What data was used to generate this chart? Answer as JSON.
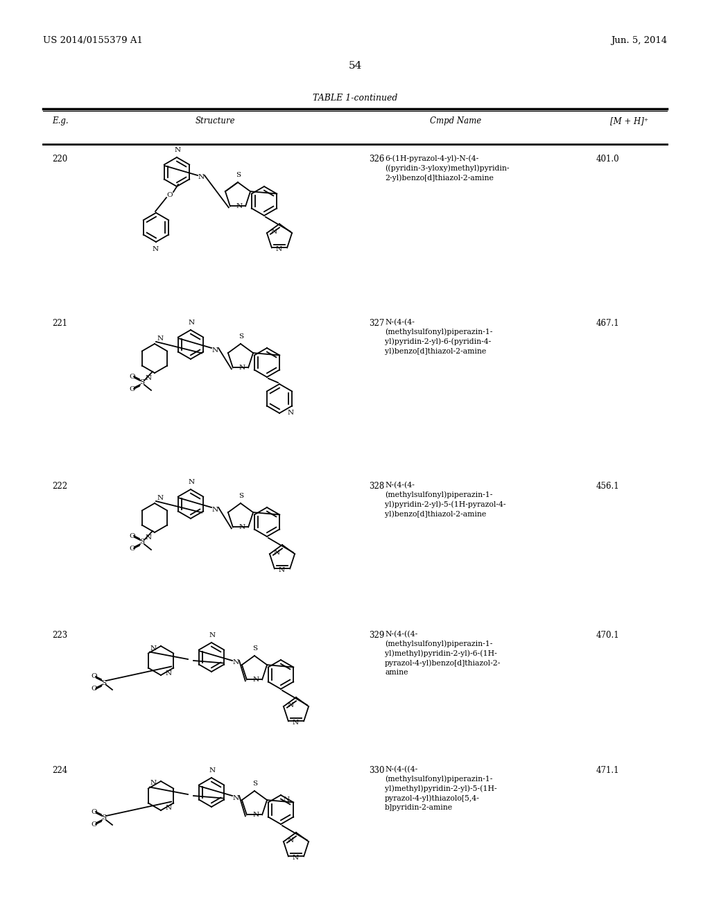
{
  "page_header_left": "US 2014/0155379 A1",
  "page_header_right": "Jun. 5, 2014",
  "page_number": "54",
  "table_title": "TABLE 1-continued",
  "col_eg": "E.g.",
  "col_structure": "Structure",
  "col_cmpd": "Cmpd Name",
  "col_mh": "[M + H]⁺",
  "rows": [
    {
      "eg": "220",
      "cmpd_num": "326",
      "cmpd_name": "6-(1H-pyrazol-4-yl)-N-(4-\n((pyridin-3-yloxy)methyl)pyridin-\n2-yl)benzo[d]thiazol-2-amine",
      "mh": "401.0"
    },
    {
      "eg": "221",
      "cmpd_num": "327",
      "cmpd_name": "N-(4-(4-\n(methylsulfonyl)piperazin-1-\nyl)pyridin-2-yl)-6-(pyridin-4-\nyl)benzo[d]thiazol-2-amine",
      "mh": "467.1"
    },
    {
      "eg": "222",
      "cmpd_num": "328",
      "cmpd_name": "N-(4-(4-\n(methylsulfonyl)piperazin-1-\nyl)pyridin-2-yl)-5-(1H-pyrazol-4-\nyl)benzo[d]thiazol-2-amine",
      "mh": "456.1"
    },
    {
      "eg": "223",
      "cmpd_num": "329",
      "cmpd_name": "N-(4-((4-\n(methylsulfonyl)piperazin-1-\nyl)methyl)pyridin-2-yl)-6-(1H-\npyrazol-4-yl)benzo[d]thiazol-2-\namine",
      "mh": "470.1"
    },
    {
      "eg": "224",
      "cmpd_num": "330",
      "cmpd_name": "N-(4-((4-\n(methylsulfonyl)piperazin-1-\nyl)methyl)pyridin-2-yl)-5-(1H-\npyrazol-4-yl)thiazolo[5,4-\nb]pyridin-2-amine",
      "mh": "471.1"
    }
  ]
}
